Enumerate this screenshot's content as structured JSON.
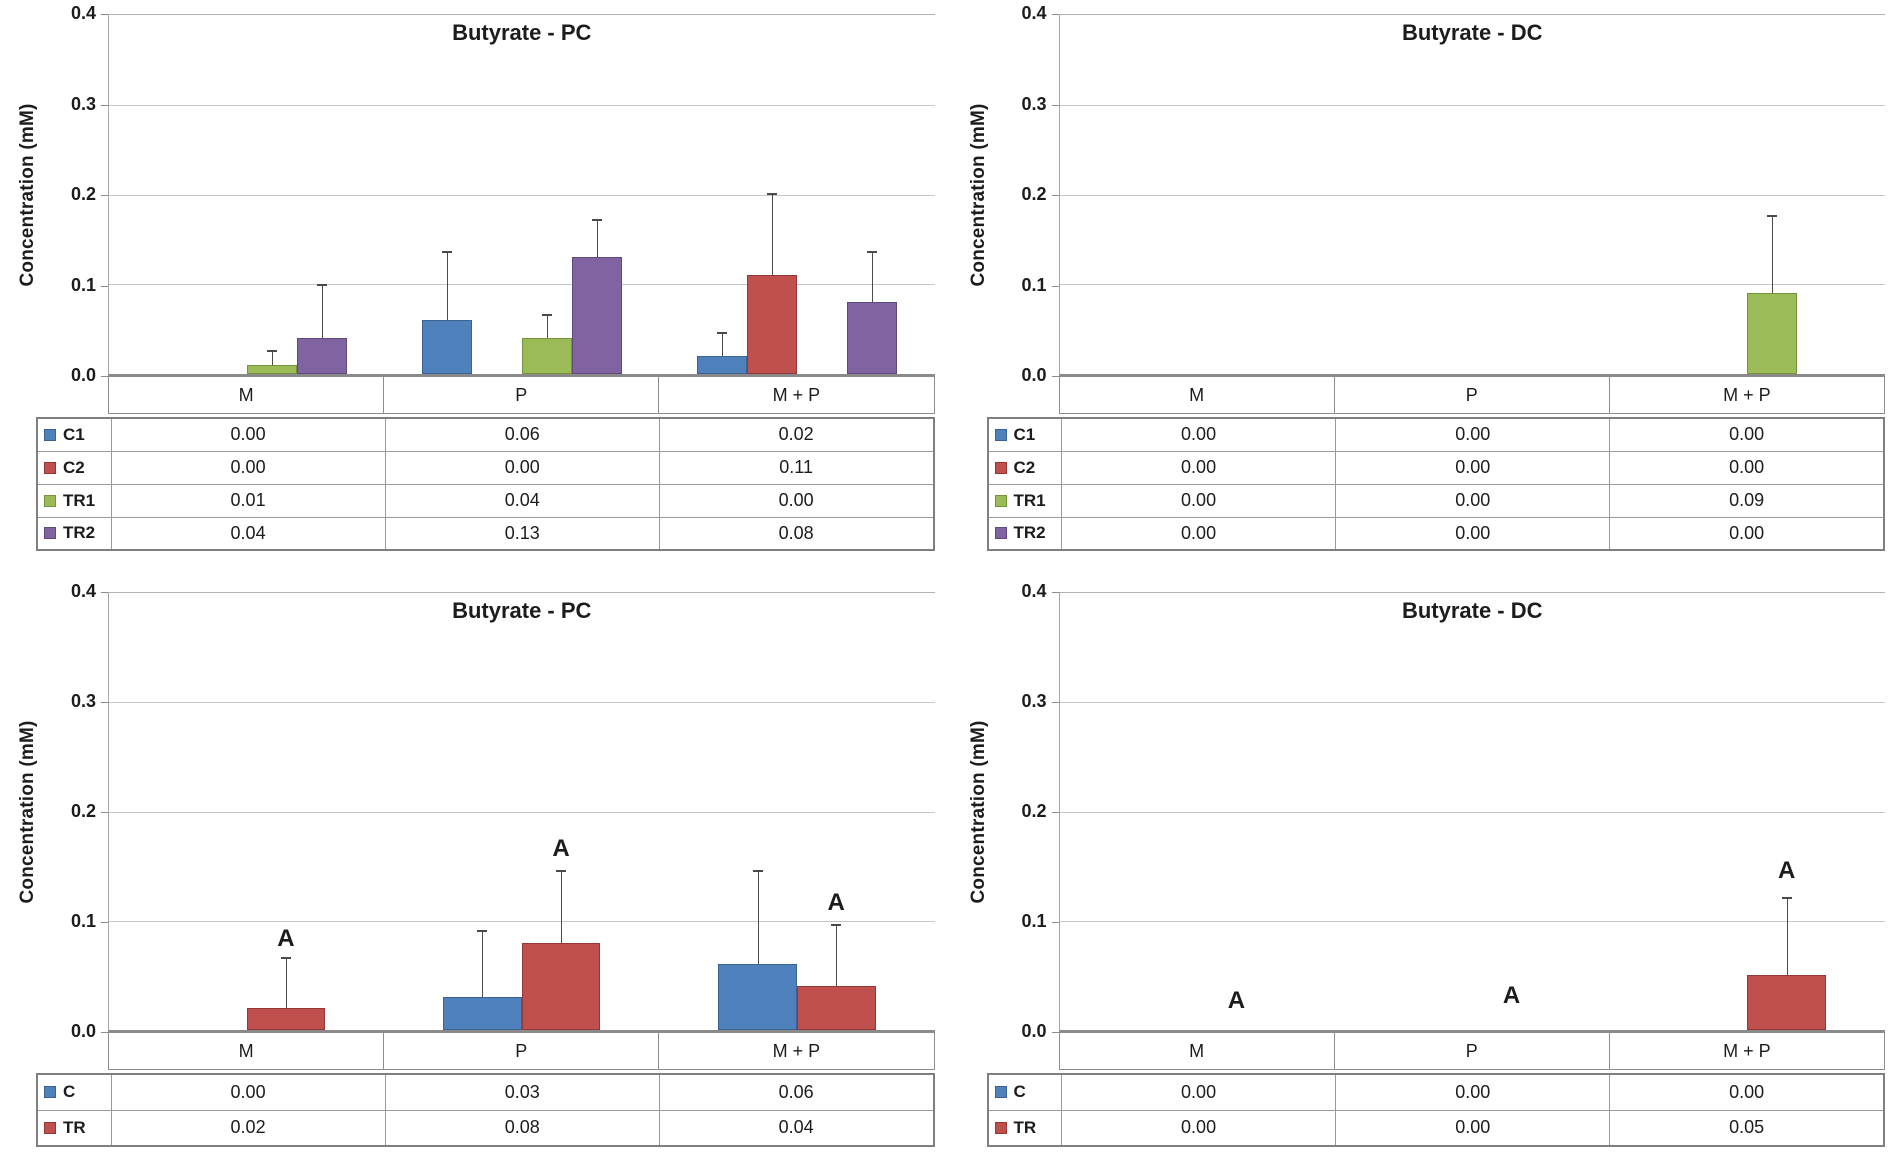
{
  "figure": {
    "description_visible_text_only": "Four bar charts with data tables",
    "background": "#ffffff"
  },
  "chart_data": [
    {
      "type": "bar",
      "title": "Butyrate - PC",
      "ylabel": "Concentration (mM)",
      "ylim": [
        0,
        0.4
      ],
      "yticks": [
        "0.4",
        "0.3",
        "0.2",
        "0.1",
        "0.0"
      ],
      "grid": true,
      "legend_position": "table-below",
      "categories": [
        "M",
        "P",
        "M + P"
      ],
      "series": [
        {
          "name": "C1",
          "color": "#4F81BD",
          "border": "#3A6394",
          "values": [
            0.0,
            0.06,
            0.02
          ],
          "errors_top": [
            0,
            0.135,
            0.045
          ],
          "labels": [
            "0.00",
            "0.06",
            "0.02"
          ]
        },
        {
          "name": "C2",
          "color": "#C0504D",
          "border": "#953735",
          "values": [
            0.0,
            0.0,
            0.11
          ],
          "errors_top": [
            0,
            0,
            0.2
          ],
          "labels": [
            "0.00",
            "0.00",
            "0.11"
          ]
        },
        {
          "name": "TR1",
          "color": "#9BBB59",
          "border": "#77933C",
          "values": [
            0.01,
            0.04,
            0.0
          ],
          "errors_top": [
            0.025,
            0.065,
            0
          ],
          "labels": [
            "0.01",
            "0.04",
            "0.00"
          ]
        },
        {
          "name": "TR2",
          "color": "#8064A2",
          "border": "#604A7B",
          "values": [
            0.04,
            0.13,
            0.08
          ],
          "errors_top": [
            0.098,
            0.17,
            0.135
          ],
          "labels": [
            "0.04",
            "0.13",
            "0.08"
          ]
        }
      ],
      "annotations": []
    },
    {
      "type": "bar",
      "title": "Butyrate - DC",
      "ylabel": "Concentration (mM)",
      "ylim": [
        0,
        0.4
      ],
      "yticks": [
        "0.4",
        "0.3",
        "0.2",
        "0.1",
        "0.0"
      ],
      "grid": true,
      "legend_position": "table-below",
      "categories": [
        "M",
        "P",
        "M + P"
      ],
      "series": [
        {
          "name": "C1",
          "color": "#4F81BD",
          "border": "#3A6394",
          "values": [
            0.0,
            0.0,
            0.0
          ],
          "errors_top": [
            0,
            0,
            0
          ],
          "labels": [
            "0.00",
            "0.00",
            "0.00"
          ]
        },
        {
          "name": "C2",
          "color": "#C0504D",
          "border": "#953735",
          "values": [
            0.0,
            0.0,
            0.0
          ],
          "errors_top": [
            0,
            0,
            0
          ],
          "labels": [
            "0.00",
            "0.00",
            "0.00"
          ]
        },
        {
          "name": "TR1",
          "color": "#9BBB59",
          "border": "#77933C",
          "values": [
            0.0,
            0.0,
            0.09
          ],
          "errors_top": [
            0,
            0,
            0.175
          ],
          "labels": [
            "0.00",
            "0.00",
            "0.09"
          ]
        },
        {
          "name": "TR2",
          "color": "#8064A2",
          "border": "#604A7B",
          "values": [
            0.0,
            0.0,
            0.0
          ],
          "errors_top": [
            0,
            0,
            0
          ],
          "labels": [
            "0.00",
            "0.00",
            "0.00"
          ]
        }
      ],
      "annotations": []
    },
    {
      "type": "bar",
      "title": "Butyrate - PC",
      "ylabel": "Concentration (mM)",
      "ylim": [
        0,
        0.4
      ],
      "yticks": [
        "0.4",
        "0.3",
        "0.2",
        "0.1",
        "0.0"
      ],
      "grid": true,
      "legend_position": "table-below",
      "categories": [
        "M",
        "P",
        "M + P"
      ],
      "series": [
        {
          "name": "C",
          "color": "#4F81BD",
          "border": "#3A6394",
          "values": [
            0.0,
            0.03,
            0.06
          ],
          "errors_top": [
            0,
            0.09,
            0.145
          ],
          "labels": [
            "0.00",
            "0.03",
            "0.06"
          ]
        },
        {
          "name": "TR",
          "color": "#C0504D",
          "border": "#953735",
          "values": [
            0.02,
            0.08,
            0.04
          ],
          "errors_top": [
            0.065,
            0.145,
            0.095
          ],
          "labels": [
            "0.02",
            "0.08",
            "0.04"
          ]
        }
      ],
      "annotations": [
        {
          "text": "A",
          "category": 0,
          "series": 1,
          "y": 0.072
        },
        {
          "text": "A",
          "category": 1,
          "series": 1,
          "y": 0.155
        },
        {
          "text": "A",
          "category": 2,
          "series": 1,
          "y": 0.105
        }
      ]
    },
    {
      "type": "bar",
      "title": "Butyrate - DC",
      "ylabel": "Concentration (mM)",
      "ylim": [
        0,
        0.4
      ],
      "yticks": [
        "0.4",
        "0.3",
        "0.2",
        "0.1",
        "0.0"
      ],
      "grid": true,
      "legend_position": "table-below",
      "categories": [
        "M",
        "P",
        "M + P"
      ],
      "series": [
        {
          "name": "C",
          "color": "#4F81BD",
          "border": "#3A6394",
          "values": [
            0.0,
            0.0,
            0.0
          ],
          "errors_top": [
            0,
            0,
            0
          ],
          "labels": [
            "0.00",
            "0.00",
            "0.00"
          ]
        },
        {
          "name": "TR",
          "color": "#C0504D",
          "border": "#953735",
          "values": [
            0.0,
            0.0,
            0.05
          ],
          "errors_top": [
            0,
            0,
            0.12
          ],
          "labels": [
            "0.00",
            "0.00",
            "0.05"
          ]
        }
      ],
      "annotations": [
        {
          "text": "A",
          "category": 0,
          "series": 1,
          "y": 0.016
        },
        {
          "text": "A",
          "category": 1,
          "series": 1,
          "y": 0.02
        },
        {
          "text": "A",
          "category": 2,
          "series": 1,
          "y": 0.135
        }
      ]
    }
  ]
}
